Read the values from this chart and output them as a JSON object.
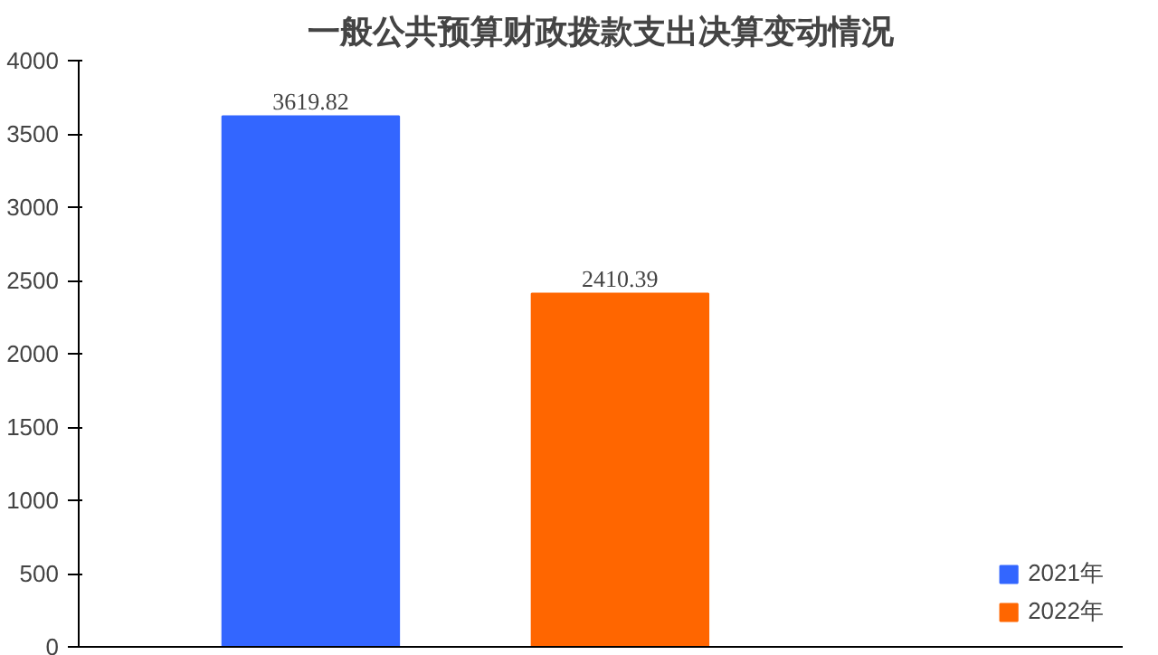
{
  "chart_data": {
    "type": "bar",
    "title": "一般公共预算财政拨款支出决算变动情况",
    "categories": [
      null
    ],
    "series": [
      {
        "name": "2021年",
        "color": "#3366ff",
        "values": [
          3619.82
        ]
      },
      {
        "name": "2022年",
        "color": "#ff6600",
        "values": [
          2410.39
        ]
      }
    ],
    "ylim": [
      0,
      4000
    ],
    "yticks": [
      0,
      500,
      1000,
      1500,
      2000,
      2500,
      3000,
      3500,
      4000
    ],
    "grid": false,
    "legend": "bottom right",
    "data_labels": true
  }
}
